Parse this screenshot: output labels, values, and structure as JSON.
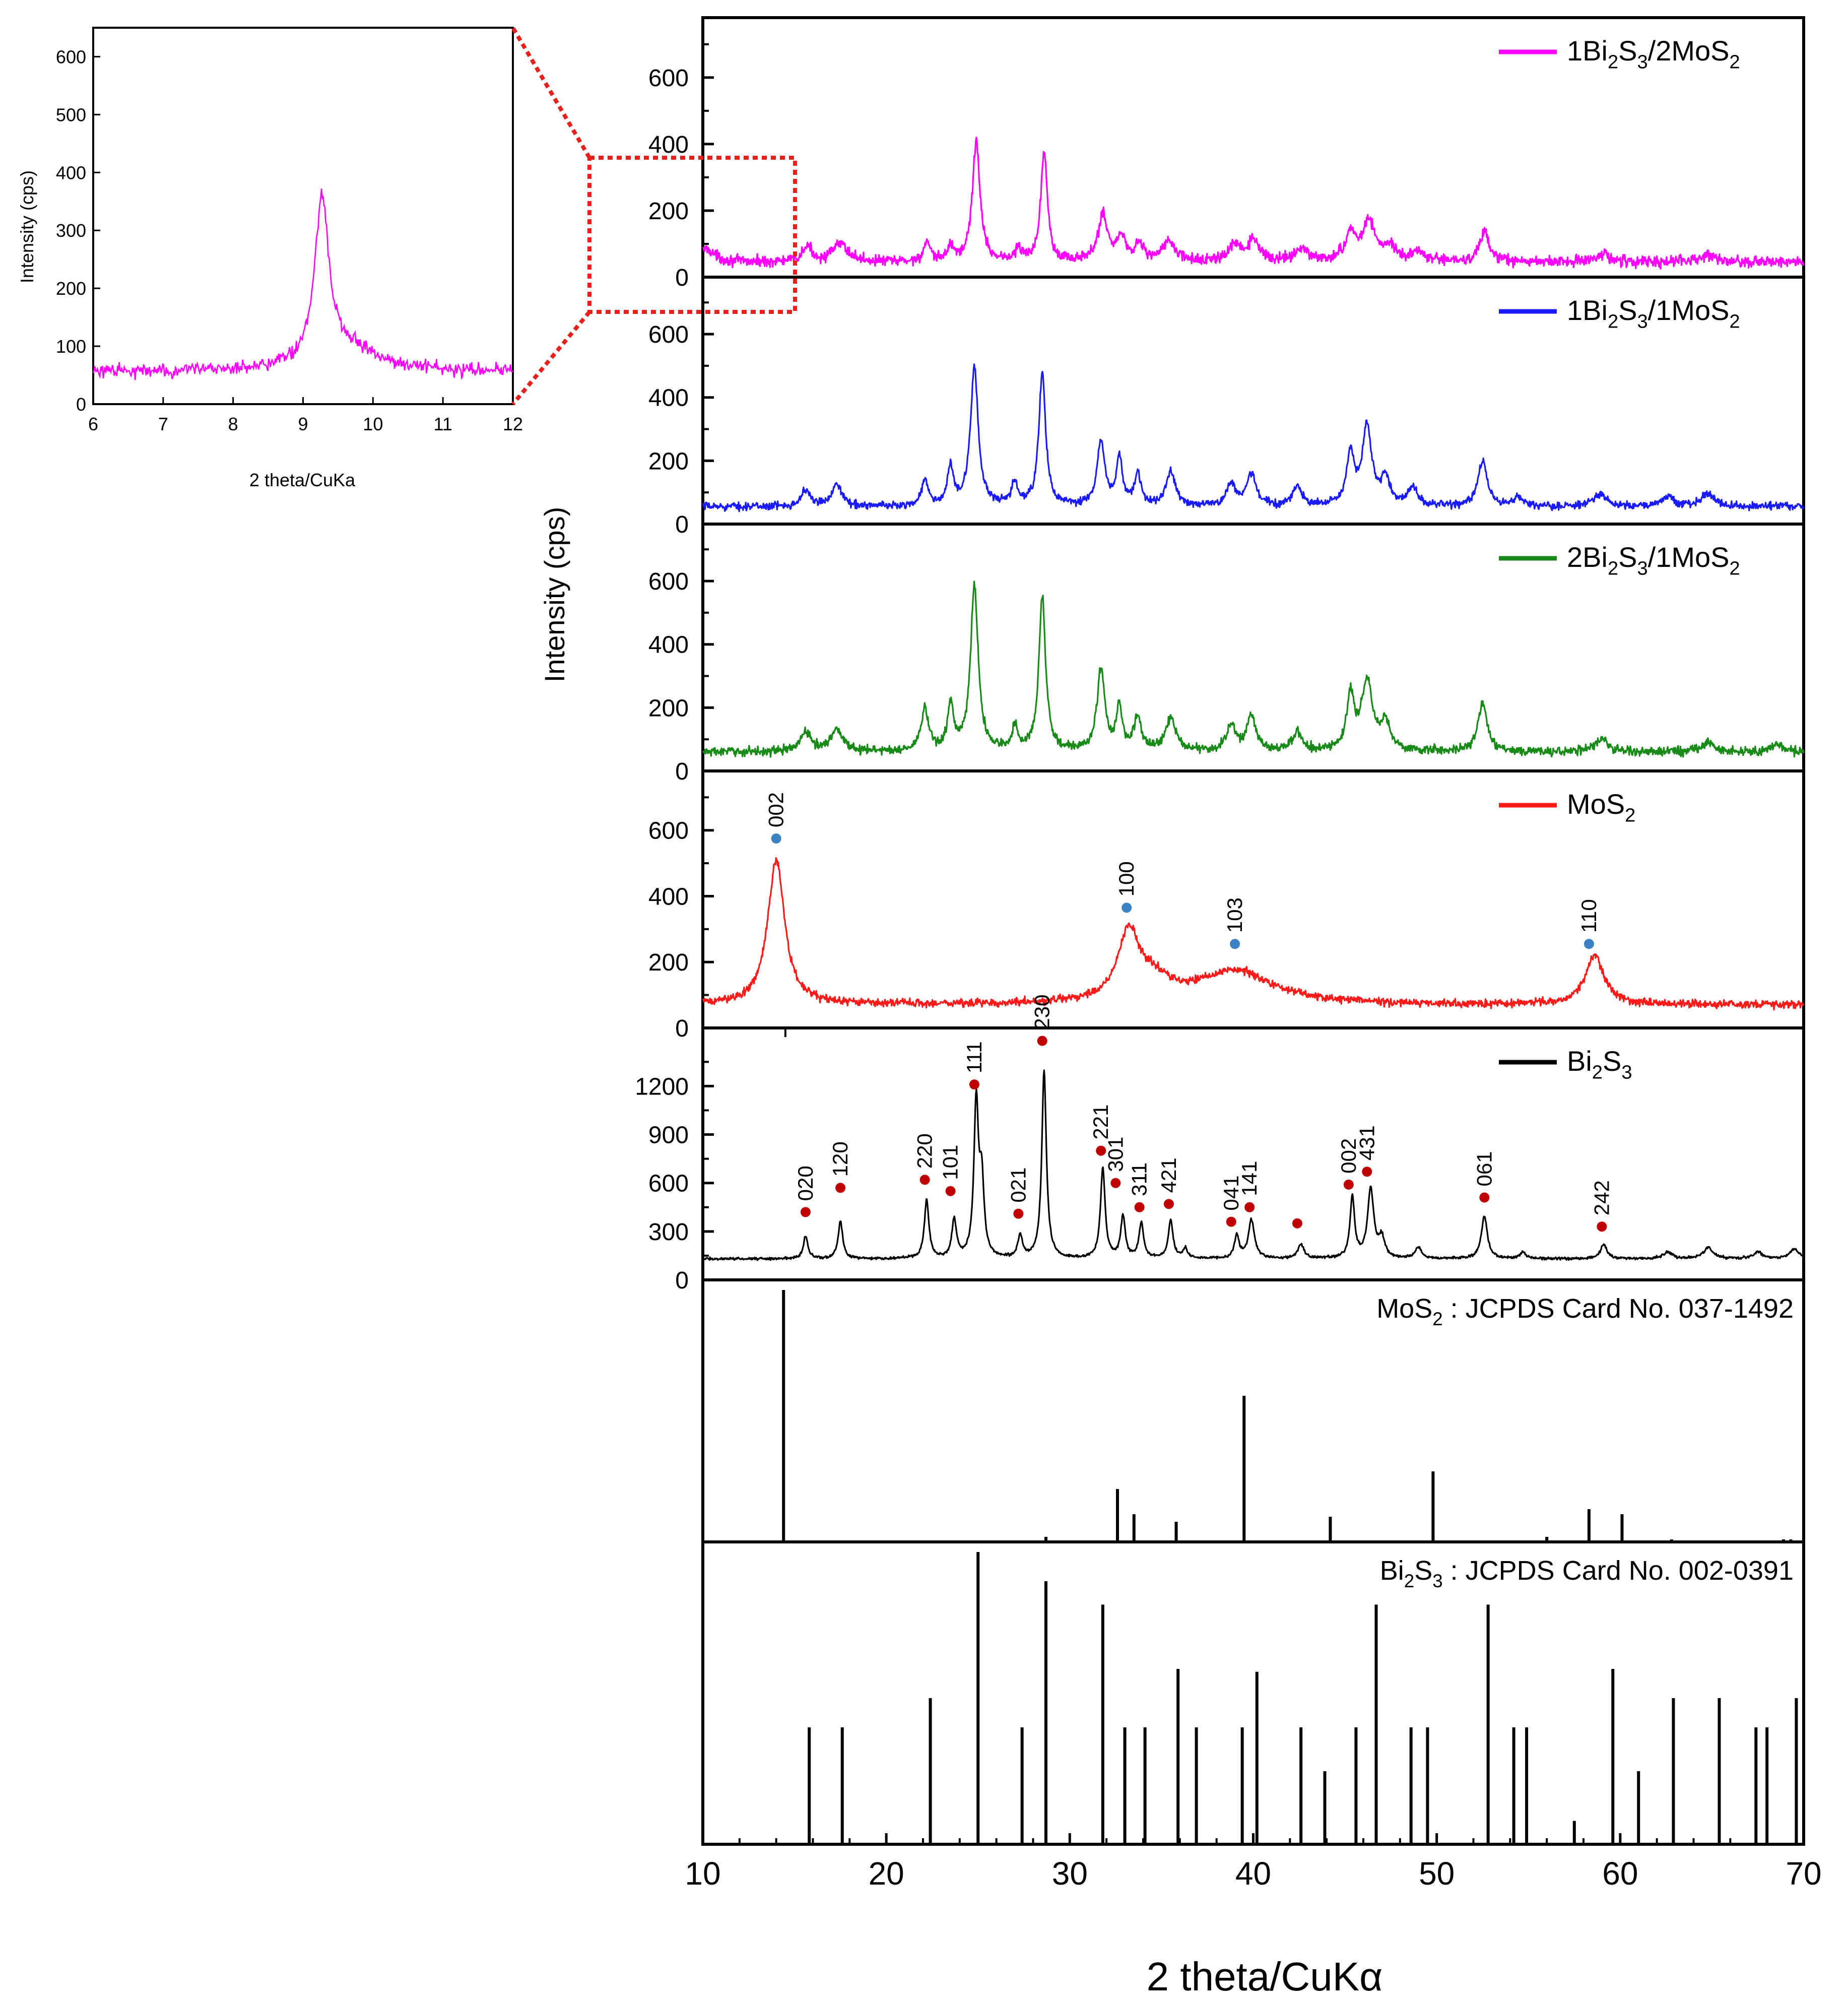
{
  "chart_data": {
    "type": "line",
    "xlabel": "2 theta/CuKα",
    "ylabel": "Intensity (cps)",
    "xlim": [
      10,
      70
    ],
    "x_ticks": [
      10,
      20,
      30,
      40,
      50,
      60,
      70
    ],
    "panels": [
      {
        "id": "1Bi2S3-2MoS2",
        "legend": {
          "base1": "1Bi",
          "sub1": "2",
          "base2": "S",
          "sub2": "3",
          "base3": "/2MoS",
          "sub3": "2"
        },
        "color": "#ff00ff",
        "ylim": [
          0,
          780
        ],
        "y_ticks": [
          0,
          200,
          400,
          600
        ],
        "baseline": 45,
        "noise": 16,
        "peaks": [
          [
            10.2,
            40,
            0.5
          ],
          [
            15.7,
            45,
            0.3
          ],
          [
            17.5,
            55,
            0.5
          ],
          [
            22.2,
            55,
            0.2
          ],
          [
            23.5,
            45,
            0.2
          ],
          [
            24.9,
            360,
            0.25
          ],
          [
            27.2,
            35,
            0.2
          ],
          [
            28.6,
            330,
            0.22
          ],
          [
            31.8,
            140,
            0.3
          ],
          [
            32.8,
            70,
            0.3
          ],
          [
            33.8,
            50,
            0.3
          ],
          [
            35.4,
            60,
            0.4
          ],
          [
            39.0,
            45,
            0.4
          ],
          [
            40.0,
            60,
            0.4
          ],
          [
            42.6,
            40,
            0.4
          ],
          [
            45.3,
            80,
            0.35
          ],
          [
            46.3,
            120,
            0.4
          ],
          [
            47.4,
            40,
            0.4
          ],
          [
            49.0,
            30,
            0.4
          ],
          [
            52.6,
            90,
            0.3
          ],
          [
            59.0,
            25,
            0.5
          ],
          [
            64.8,
            20,
            0.5
          ]
        ]
      },
      {
        "id": "1Bi2S3-1MoS2",
        "legend": {
          "base1": "1Bi",
          "sub1": "2",
          "base2": "S",
          "sub2": "3",
          "base3": "/1MoS",
          "sub3": "2"
        },
        "color": "#1a1aff",
        "ylim": [
          0,
          780
        ],
        "y_ticks": [
          0,
          200,
          400,
          600
        ],
        "baseline": 55,
        "noise": 12,
        "peaks": [
          [
            15.6,
            50,
            0.3
          ],
          [
            17.3,
            75,
            0.3
          ],
          [
            22.1,
            85,
            0.2
          ],
          [
            23.5,
            120,
            0.2
          ],
          [
            24.8,
            440,
            0.25
          ],
          [
            27.0,
            70,
            0.2
          ],
          [
            28.5,
            420,
            0.22
          ],
          [
            31.7,
            200,
            0.25
          ],
          [
            32.7,
            150,
            0.2
          ],
          [
            33.7,
            100,
            0.2
          ],
          [
            35.5,
            110,
            0.3
          ],
          [
            38.8,
            70,
            0.3
          ],
          [
            39.9,
            100,
            0.3
          ],
          [
            42.4,
            60,
            0.3
          ],
          [
            45.3,
            160,
            0.25
          ],
          [
            46.2,
            250,
            0.3
          ],
          [
            47.2,
            80,
            0.3
          ],
          [
            48.7,
            60,
            0.3
          ],
          [
            52.5,
            140,
            0.3
          ],
          [
            54.5,
            30,
            0.3
          ],
          [
            58.9,
            40,
            0.4
          ],
          [
            62.6,
            30,
            0.4
          ],
          [
            64.8,
            40,
            0.4
          ]
        ]
      },
      {
        "id": "2Bi2S3-1MoS2",
        "legend": {
          "base1": "2Bi",
          "sub1": "2",
          "base2": "S",
          "sub2": "3",
          "base3": "/1MoS",
          "sub3": "2"
        },
        "color": "#188a18",
        "ylim": [
          0,
          780
        ],
        "y_ticks": [
          0,
          200,
          400,
          600
        ],
        "baseline": 60,
        "noise": 14,
        "peaks": [
          [
            15.6,
            60,
            0.35
          ],
          [
            17.3,
            70,
            0.4
          ],
          [
            22.1,
            130,
            0.25
          ],
          [
            23.5,
            140,
            0.2
          ],
          [
            24.8,
            520,
            0.25
          ],
          [
            27.0,
            70,
            0.2
          ],
          [
            28.5,
            490,
            0.22
          ],
          [
            31.7,
            260,
            0.25
          ],
          [
            32.7,
            130,
            0.2
          ],
          [
            33.7,
            100,
            0.25
          ],
          [
            35.5,
            100,
            0.35
          ],
          [
            38.8,
            80,
            0.3
          ],
          [
            39.9,
            110,
            0.3
          ],
          [
            42.4,
            60,
            0.3
          ],
          [
            45.3,
            170,
            0.25
          ],
          [
            46.2,
            220,
            0.35
          ],
          [
            47.2,
            90,
            0.3
          ],
          [
            52.5,
            150,
            0.3
          ],
          [
            59.0,
            40,
            0.4
          ],
          [
            64.8,
            30,
            0.4
          ],
          [
            68.5,
            25,
            0.4
          ]
        ]
      },
      {
        "id": "MoS2",
        "legend": {
          "base1": "MoS",
          "sub1": "2",
          "base2": "",
          "sub2": "",
          "base3": "",
          "sub3": ""
        },
        "color": "#ff1a1a",
        "ylim": [
          0,
          780
        ],
        "y_ticks": [
          0,
          200,
          400,
          600
        ],
        "baseline": 70,
        "noise": 12,
        "peaks": [
          [
            14.0,
            440,
            0.55
          ],
          [
            33.2,
            200,
            0.7
          ],
          [
            34.5,
            60,
            1.2
          ],
          [
            39.0,
            100,
            2.5
          ],
          [
            58.6,
            150,
            0.6
          ]
        ],
        "markers": [
          {
            "label": "002",
            "x": 14.0,
            "y": 575
          },
          {
            "label": "100",
            "x": 33.1,
            "y": 365
          },
          {
            "label": "103",
            "x": 39.0,
            "y": 255
          },
          {
            "label": "110",
            "x": 58.3,
            "y": 255
          }
        ]
      },
      {
        "id": "Bi2S3",
        "legend": {
          "base1": "Bi",
          "sub1": "2",
          "base2": "S",
          "sub2": "3",
          "base3": "",
          "sub3": ""
        },
        "color": "#000000",
        "ylim": [
          0,
          1560
        ],
        "y_ticks": [
          0,
          300,
          600,
          900,
          1200
        ],
        "baseline": 130,
        "noise": 8,
        "peaks": [
          [
            15.6,
            140,
            0.15
          ],
          [
            17.5,
            230,
            0.15
          ],
          [
            22.2,
            360,
            0.15
          ],
          [
            23.7,
            240,
            0.15
          ],
          [
            24.9,
            950,
            0.15
          ],
          [
            25.2,
            450,
            0.15
          ],
          [
            27.3,
            140,
            0.15
          ],
          [
            28.6,
            1160,
            0.15
          ],
          [
            31.8,
            560,
            0.15
          ],
          [
            32.9,
            260,
            0.15
          ],
          [
            33.9,
            220,
            0.15
          ],
          [
            35.5,
            240,
            0.15
          ],
          [
            36.3,
            60,
            0.15
          ],
          [
            39.1,
            140,
            0.15
          ],
          [
            39.9,
            240,
            0.2
          ],
          [
            42.6,
            90,
            0.2
          ],
          [
            45.4,
            380,
            0.15
          ],
          [
            46.4,
            430,
            0.2
          ],
          [
            47.0,
            120,
            0.2
          ],
          [
            49.0,
            70,
            0.2
          ],
          [
            52.6,
            260,
            0.2
          ],
          [
            54.7,
            40,
            0.2
          ],
          [
            59.1,
            90,
            0.2
          ],
          [
            62.6,
            40,
            0.3
          ],
          [
            64.8,
            70,
            0.3
          ],
          [
            67.5,
            40,
            0.3
          ],
          [
            69.5,
            60,
            0.3
          ]
        ],
        "markers": [
          {
            "label": "020",
            "x": 15.6,
            "y": 420
          },
          {
            "label": "120",
            "x": 17.5,
            "y": 570
          },
          {
            "label": "220",
            "x": 22.1,
            "y": 620
          },
          {
            "label": "101",
            "x": 23.5,
            "y": 550
          },
          {
            "label": "111",
            "x": 24.8,
            "y": 1210
          },
          {
            "label": "021",
            "x": 27.2,
            "y": 410
          },
          {
            "label": "230",
            "x": 28.5,
            "y": 1480
          },
          {
            "label": "221",
            "x": 31.7,
            "y": 800
          },
          {
            "label": "301",
            "x": 32.5,
            "y": 600
          },
          {
            "label": "311",
            "x": 33.8,
            "y": 450
          },
          {
            "label": "421",
            "x": 35.4,
            "y": 470
          },
          {
            "label": "041",
            "x": 38.8,
            "y": 360
          },
          {
            "label": "141",
            "x": 39.8,
            "y": 450
          },
          {
            "label": "",
            "x": 42.4,
            "y": 350
          },
          {
            "label": "002",
            "x": 45.2,
            "y": 590
          },
          {
            "label": "431",
            "x": 46.2,
            "y": 670
          },
          {
            "label": "061",
            "x": 52.6,
            "y": 510
          },
          {
            "label": "242",
            "x": 59.0,
            "y": 330
          }
        ]
      }
    ],
    "reference_cards": [
      {
        "id": "MoS2-card",
        "label": {
          "base1": "MoS",
          "sub1": "2",
          "base2": "",
          "sub2": "",
          "rest": " : JCPDS Card No. 037-1492"
        },
        "lines": [
          [
            14.4,
            100
          ],
          [
            28.7,
            2
          ],
          [
            32.6,
            21
          ],
          [
            33.5,
            11
          ],
          [
            35.8,
            8
          ],
          [
            39.5,
            58
          ],
          [
            44.2,
            10
          ],
          [
            49.8,
            28
          ],
          [
            56.0,
            2
          ],
          [
            58.3,
            13
          ],
          [
            60.1,
            11
          ],
          [
            62.8,
            1
          ],
          [
            68.9,
            1
          ],
          [
            69.3,
            1
          ]
        ]
      },
      {
        "id": "Bi2S3-card",
        "label": {
          "base1": "Bi",
          "sub1": "2",
          "base2": "S",
          "sub2": "3",
          "rest": " : JCPDS Card No. 002-0391"
        },
        "lines": [
          [
            15.8,
            40
          ],
          [
            17.6,
            40
          ],
          [
            22.4,
            50
          ],
          [
            25.0,
            100
          ],
          [
            27.4,
            40
          ],
          [
            28.7,
            90
          ],
          [
            31.8,
            82
          ],
          [
            33.0,
            40
          ],
          [
            34.1,
            40
          ],
          [
            35.9,
            60
          ],
          [
            36.9,
            40
          ],
          [
            39.4,
            40
          ],
          [
            40.2,
            59
          ],
          [
            42.6,
            40
          ],
          [
            43.9,
            25
          ],
          [
            45.6,
            40
          ],
          [
            46.7,
            82
          ],
          [
            48.6,
            40
          ],
          [
            49.5,
            40
          ],
          [
            52.8,
            82
          ],
          [
            54.2,
            40
          ],
          [
            54.9,
            40
          ],
          [
            57.5,
            8
          ],
          [
            59.6,
            60
          ],
          [
            61.0,
            25
          ],
          [
            62.9,
            50
          ],
          [
            65.4,
            50
          ],
          [
            67.4,
            40
          ],
          [
            68.0,
            40
          ],
          [
            69.6,
            50
          ]
        ]
      }
    ],
    "inset": {
      "xlabel": "2 theta/CuKa",
      "ylabel": "Intensity (cps)",
      "color": "#ff00ff",
      "xlim": [
        6,
        12
      ],
      "ylim": [
        0,
        650
      ],
      "x_ticks": [
        6,
        7,
        8,
        9,
        10,
        11,
        12
      ],
      "y_ticks": [
        0,
        100,
        200,
        300,
        400,
        500,
        600
      ],
      "baseline": 55,
      "noise": 12,
      "peaks": [
        [
          9.27,
          280,
          0.12
        ],
        [
          9.6,
          40,
          0.6
        ]
      ]
    }
  }
}
